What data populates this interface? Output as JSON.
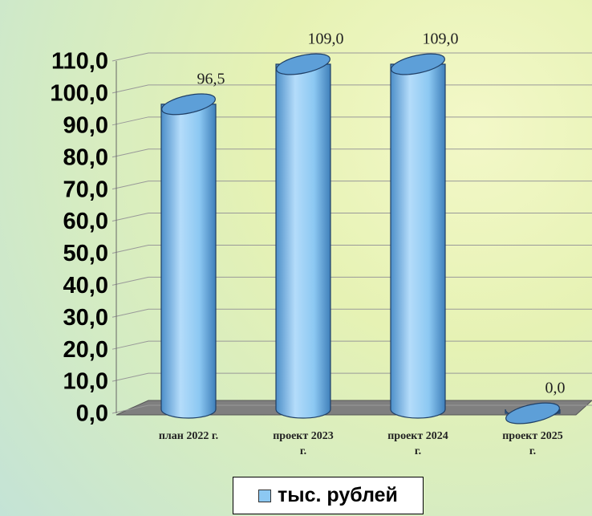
{
  "chart_data": {
    "type": "bar3d",
    "categories": [
      "план 2022 г.",
      "проект 2023 г.",
      "проект 2024 г.",
      "проект 2025 г."
    ],
    "series": [
      {
        "name": "тыс. рублей",
        "color": "#8cc8f2",
        "values": [
          96.5,
          109.0,
          109.0,
          0.0
        ],
        "value_labels": [
          "96,5",
          "109,0",
          "109,0",
          "0,0"
        ]
      }
    ],
    "ylim": [
      0,
      110
    ],
    "yticks": [
      {
        "value": 0,
        "label": "0,0"
      },
      {
        "value": 10,
        "label": "10,0"
      },
      {
        "value": 20,
        "label": "20,0"
      },
      {
        "value": 30,
        "label": "30,0"
      },
      {
        "value": 40,
        "label": "40,0"
      },
      {
        "value": 50,
        "label": "50,0"
      },
      {
        "value": 60,
        "label": "60,0"
      },
      {
        "value": 70,
        "label": "70,0"
      },
      {
        "value": 80,
        "label": "80,0"
      },
      {
        "value": 90,
        "label": "90,0"
      },
      {
        "value": 100,
        "label": "100,0"
      },
      {
        "value": 110,
        "label": "110,0"
      }
    ],
    "grid": true
  }
}
